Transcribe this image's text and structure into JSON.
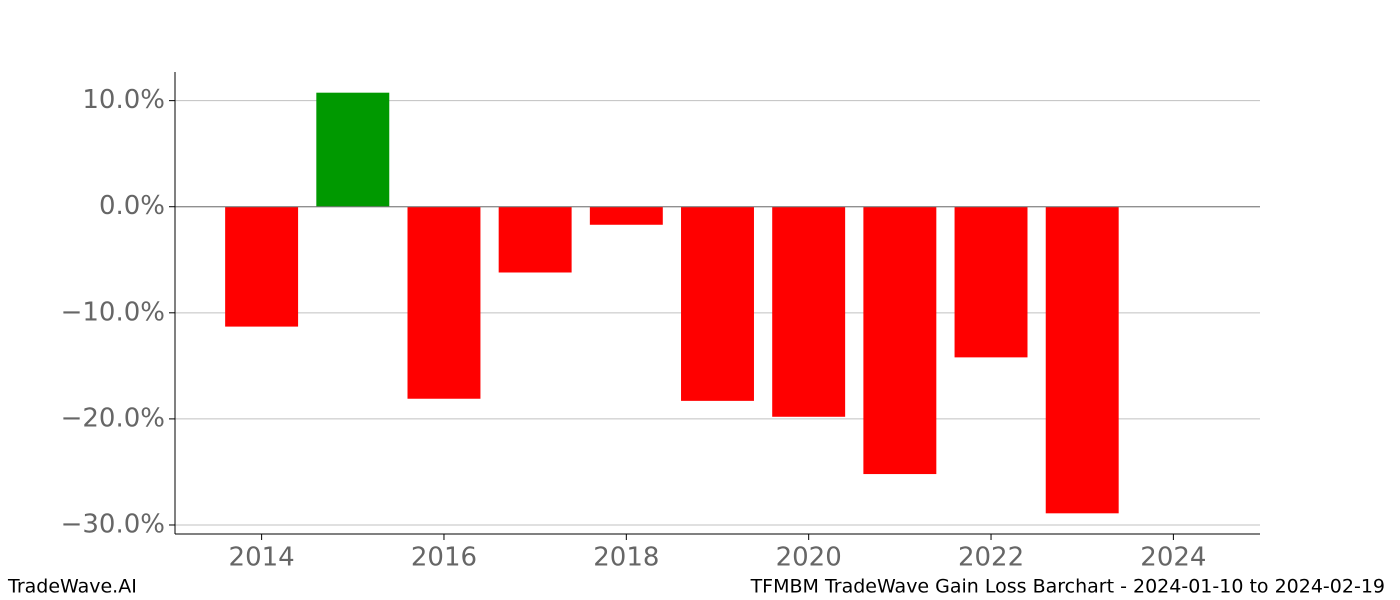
{
  "chart_data": {
    "type": "bar",
    "x": [
      2014,
      2015,
      2016,
      2017,
      2018,
      2019,
      2020,
      2021,
      2022,
      2023
    ],
    "values": [
      -11.3,
      10.75,
      -18.1,
      -6.2,
      -1.7,
      -18.3,
      -19.8,
      -25.2,
      -14.2,
      -28.9
    ],
    "colors": [
      "#ff0000",
      "#009900",
      "#ff0000",
      "#ff0000",
      "#ff0000",
      "#ff0000",
      "#ff0000",
      "#ff0000",
      "#ff0000",
      "#ff0000"
    ],
    "xlim": [
      2013.05,
      2024.95
    ],
    "xticks": [
      2014,
      2016,
      2018,
      2020,
      2022,
      2024
    ],
    "ylim": [
      -30.85,
      12.7
    ],
    "yticks": [
      {
        "value": 10,
        "label": "10.0%"
      },
      {
        "value": 0,
        "label": "0.0%"
      },
      {
        "value": -10,
        "label": "−10.0%"
      },
      {
        "value": -20,
        "label": "−20.0%"
      },
      {
        "value": -30,
        "label": "−30.0%"
      }
    ],
    "grid": true
  },
  "footer": {
    "left": "TradeWave.AI",
    "right": "TFMBM TradeWave Gain Loss Barchart - 2024-01-10 to 2024-02-19"
  }
}
